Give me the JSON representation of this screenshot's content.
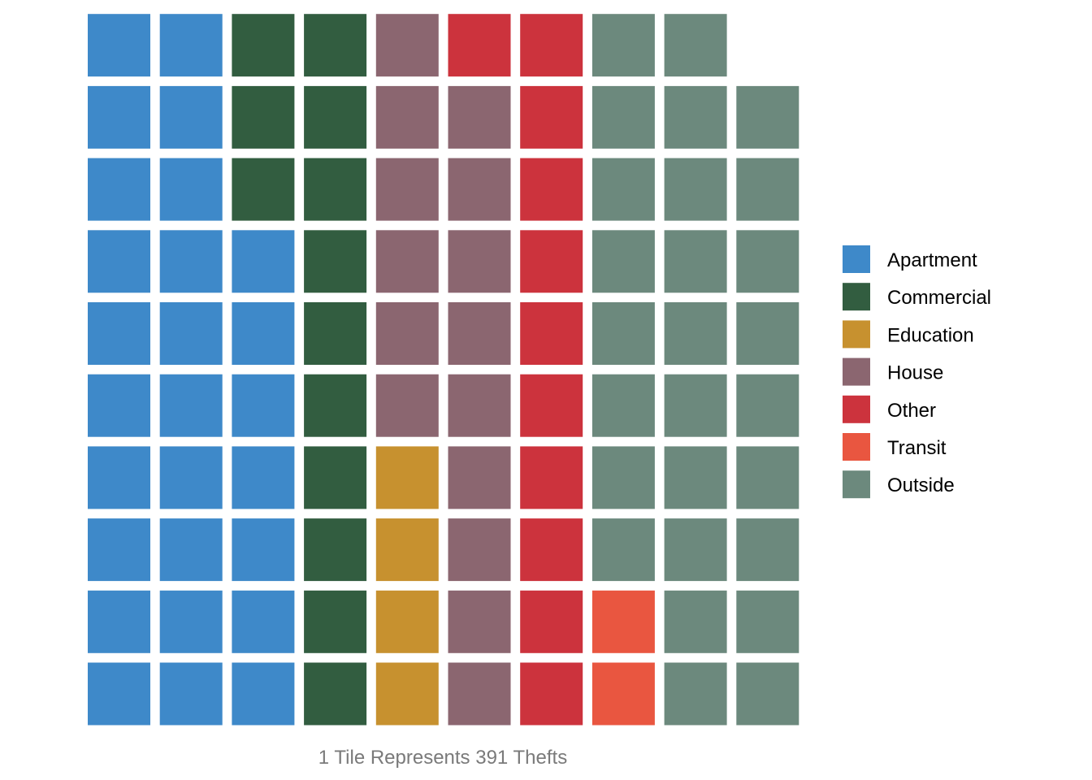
{
  "chart_data": {
    "type": "waffle",
    "unit": "1 Tile Represents 391 Thefts",
    "grid": false,
    "legend_position": "right",
    "series": [
      {
        "name": "Apartment",
        "tiles": 27,
        "color": "#3E89C9"
      },
      {
        "name": "Commercial",
        "tiles": 13,
        "color": "#325D40"
      },
      {
        "name": "Education",
        "tiles": 4,
        "color": "#C7912F"
      },
      {
        "name": "House",
        "tiles": 15,
        "color": "#8B6670"
      },
      {
        "name": "Other",
        "tiles": 11,
        "color": "#CC333D"
      },
      {
        "name": "Transit",
        "tiles": 2,
        "color": "#E95640"
      },
      {
        "name": "Outside",
        "tiles": 27,
        "color": "#6C897D"
      }
    ]
  }
}
